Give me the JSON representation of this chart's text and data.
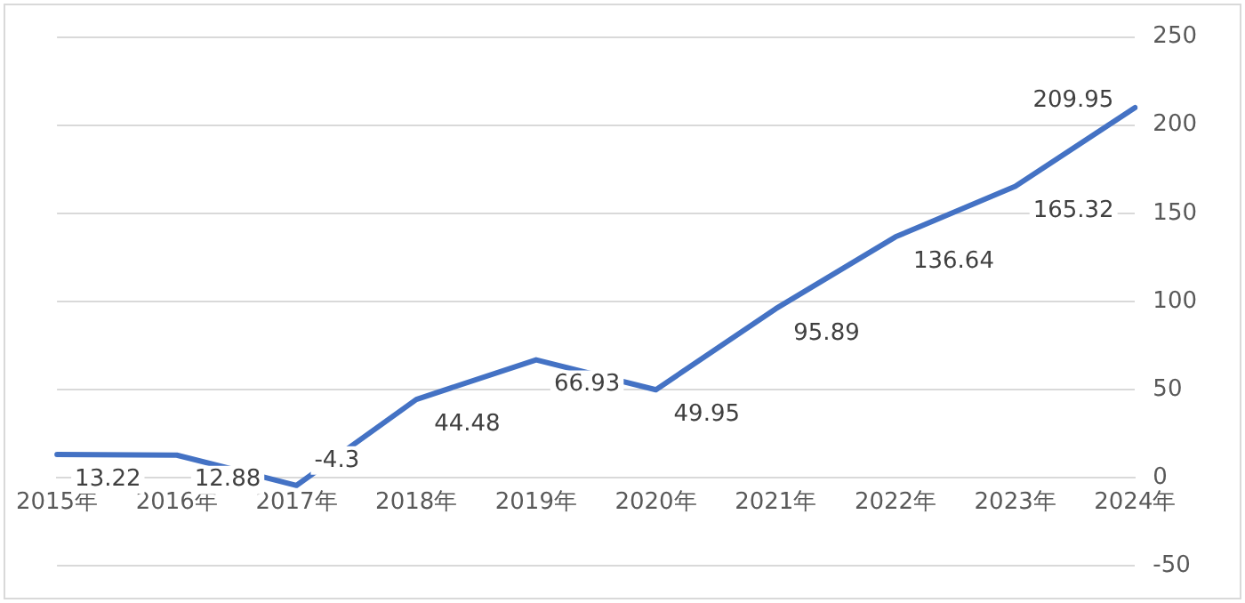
{
  "chart_data": {
    "type": "line",
    "categories": [
      "2015年",
      "2016年",
      "2017年",
      "2018年",
      "2019年",
      "2020年",
      "2021年",
      "2022年",
      "2023年",
      "2024年"
    ],
    "series": [
      {
        "color": "#4472c4",
        "values": [
          13.22,
          12.88,
          -4.3,
          44.48,
          66.93,
          49.95,
          95.89,
          136.64,
          165.32,
          209.95
        ]
      }
    ],
    "ylim": [
      -50,
      250
    ],
    "yticks": [
      -50,
      0,
      50,
      100,
      150,
      200,
      250
    ],
    "grid": "y",
    "legend": false,
    "marker": "none",
    "line_style": "solid",
    "data_labels": true
  }
}
